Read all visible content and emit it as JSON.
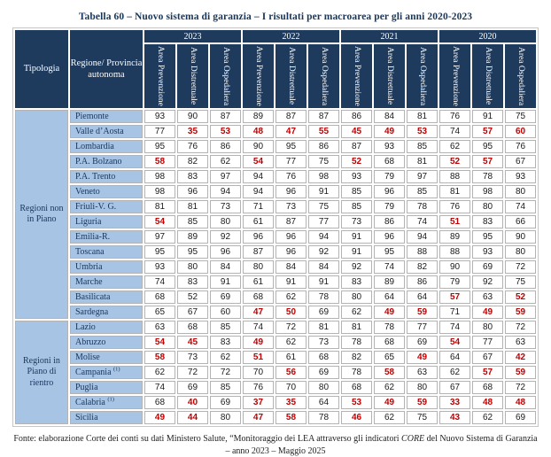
{
  "title": "Tabella 60 – Nuovo sistema di garanzia – I risultati per macroarea per gli anni 2020-2023",
  "colors": {
    "header_bg": "#1e3a5c",
    "row_label_bg": "#a8c4e4",
    "alert_value": "#c00000",
    "title_text": "#17365d"
  },
  "table": {
    "header": {
      "tipologia": "Tipologia",
      "regione": "Regione/ Provincia autonoma"
    },
    "years": [
      "2023",
      "2022",
      "2021",
      "2020"
    ],
    "areas": [
      "Area Prevenzione",
      "Area Distrettuale",
      "Area Ospedaliera"
    ],
    "groups": [
      {
        "tipologia": "Regioni non in Piano",
        "rows": [
          {
            "name": "Piemonte",
            "note": "",
            "values": [
              93,
              90,
              87,
              89,
              87,
              87,
              86,
              84,
              81,
              76,
              91,
              75
            ],
            "red": []
          },
          {
            "name": "Valle d’Aosta",
            "note": "",
            "values": [
              77,
              35,
              53,
              48,
              47,
              55,
              45,
              49,
              53,
              74,
              57,
              60
            ],
            "red": [
              1,
              2,
              3,
              4,
              5,
              6,
              7,
              8,
              10,
              11
            ]
          },
          {
            "name": "Lombardia",
            "note": "",
            "values": [
              95,
              76,
              86,
              90,
              95,
              86,
              87,
              93,
              85,
              62,
              95,
              76
            ],
            "red": []
          },
          {
            "name": "P.A. Bolzano",
            "note": "",
            "values": [
              58,
              82,
              62,
              54,
              77,
              75,
              52,
              68,
              81,
              52,
              57,
              67
            ],
            "red": [
              0,
              3,
              6,
              9,
              10
            ]
          },
          {
            "name": "P.A. Trento",
            "note": "",
            "values": [
              98,
              83,
              97,
              94,
              76,
              98,
              93,
              79,
              97,
              88,
              78,
              93
            ],
            "red": []
          },
          {
            "name": "Veneto",
            "note": "",
            "values": [
              98,
              96,
              94,
              94,
              96,
              91,
              85,
              96,
              85,
              81,
              98,
              80
            ],
            "red": []
          },
          {
            "name": "Friuli-V. G.",
            "note": "",
            "values": [
              81,
              81,
              73,
              71,
              73,
              75,
              85,
              79,
              78,
              76,
              80,
              74
            ],
            "red": []
          },
          {
            "name": "Liguria",
            "note": "",
            "values": [
              54,
              85,
              80,
              61,
              87,
              77,
              73,
              86,
              74,
              51,
              83,
              66
            ],
            "red": [
              0,
              9
            ]
          },
          {
            "name": "Emilia-R.",
            "note": "",
            "values": [
              97,
              89,
              92,
              96,
              96,
              94,
              91,
              96,
              94,
              89,
              95,
              90
            ],
            "red": []
          },
          {
            "name": "Toscana",
            "note": "",
            "values": [
              95,
              95,
              96,
              87,
              96,
              92,
              91,
              95,
              88,
              88,
              93,
              80
            ],
            "red": []
          },
          {
            "name": "Umbria",
            "note": "",
            "values": [
              93,
              80,
              84,
              80,
              84,
              84,
              92,
              74,
              82,
              90,
              69,
              72
            ],
            "red": []
          },
          {
            "name": "Marche",
            "note": "",
            "values": [
              74,
              83,
              91,
              61,
              91,
              91,
              83,
              89,
              86,
              79,
              92,
              75
            ],
            "red": []
          },
          {
            "name": "Basilicata",
            "note": "",
            "values": [
              68,
              52,
              69,
              68,
              62,
              78,
              80,
              64,
              64,
              57,
              63,
              52
            ],
            "red": [
              9,
              11
            ]
          },
          {
            "name": "Sardegna",
            "note": "",
            "values": [
              65,
              67,
              60,
              47,
              50,
              69,
              62,
              49,
              59,
              71,
              49,
              59
            ],
            "red": [
              3,
              4,
              7,
              8,
              10,
              11
            ]
          }
        ]
      },
      {
        "tipologia": "Regioni in Piano di rientro",
        "rows": [
          {
            "name": "Lazio",
            "note": "",
            "values": [
              63,
              68,
              85,
              74,
              72,
              81,
              81,
              78,
              77,
              74,
              80,
              72
            ],
            "red": []
          },
          {
            "name": "Abruzzo",
            "note": "",
            "values": [
              54,
              45,
              83,
              49,
              62,
              73,
              78,
              68,
              69,
              54,
              77,
              63
            ],
            "red": [
              0,
              1,
              3,
              9
            ]
          },
          {
            "name": "Molise",
            "note": "",
            "values": [
              58,
              73,
              62,
              51,
              61,
              68,
              82,
              65,
              49,
              64,
              67,
              42
            ],
            "red": [
              0,
              3,
              8,
              11
            ]
          },
          {
            "name": "Campania",
            "note": "(1)",
            "values": [
              62,
              72,
              72,
              70,
              56,
              69,
              78,
              58,
              63,
              62,
              57,
              59
            ],
            "red": [
              4,
              7,
              10,
              11
            ]
          },
          {
            "name": "Puglia",
            "note": "",
            "values": [
              74,
              69,
              85,
              76,
              70,
              80,
              68,
              62,
              80,
              67,
              68,
              72
            ],
            "red": []
          },
          {
            "name": "Calabria",
            "note": "(1)",
            "values": [
              68,
              40,
              69,
              37,
              35,
              64,
              53,
              49,
              59,
              33,
              48,
              48
            ],
            "red": [
              1,
              3,
              4,
              6,
              7,
              8,
              9,
              10,
              11
            ]
          },
          {
            "name": "Sicilia",
            "note": "",
            "values": [
              49,
              44,
              80,
              47,
              58,
              78,
              46,
              62,
              75,
              43,
              62,
              69
            ],
            "red": [
              0,
              1,
              3,
              4,
              6,
              9
            ]
          }
        ]
      }
    ]
  },
  "footer": {
    "prefix": "Fonte: elaborazione Corte dei conti su dati Ministero Salute, “Monitoraggio dei LEA attraverso gli indicatori ",
    "italic": "CORE",
    "suffix": " del Nuovo Sistema di Garanzia – anno 2023 – Maggio 2025"
  }
}
